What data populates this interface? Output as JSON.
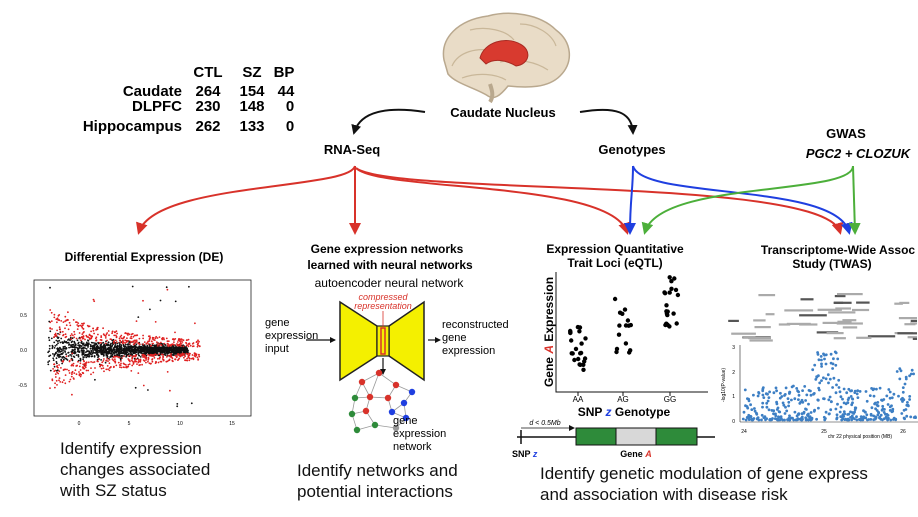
{
  "sample_table": {
    "headers": [
      "CTL",
      "SZ",
      "BP"
    ],
    "rows": [
      {
        "region": "Caudate",
        "values": [
          "264",
          "154",
          "44"
        ]
      },
      {
        "region": "DLPFC",
        "values": [
          "230",
          "148",
          "0"
        ]
      },
      {
        "region": "Hippocampus",
        "values": [
          "262",
          "133",
          "0"
        ]
      }
    ]
  },
  "top": {
    "source": "Caudate Nucleus",
    "rnaseq": "RNA-Seq",
    "genotypes": "Genotypes",
    "gwas_title": "GWAS",
    "gwas_sub": "PGC2 + CLOZUK"
  },
  "colors": {
    "rnaseq_arrows": "#d8322a",
    "genotype_arrows": "#1f3fe0",
    "gwas_arrows": "#4caf3a",
    "de_red_points": "#e02020",
    "twas_points": "#3d7fc4",
    "gene_green": "#2e8b3a",
    "autoencoder_yellow": "#f4f000"
  },
  "panels": {
    "de": {
      "title": "Differential Expression (DE)",
      "y_ticks": [
        "0.5",
        "0.0",
        "-0.5"
      ],
      "x_ticks": [
        "0",
        "5",
        "10",
        "15"
      ],
      "caption": [
        "Identify expression",
        "changes associated",
        "with SZ status"
      ]
    },
    "nn": {
      "title_lines": [
        "Gene expression networks",
        "learned with neural networks"
      ],
      "subtitle": "autoencoder neural network",
      "compressed": [
        "compressed",
        "representation"
      ],
      "input": [
        "gene",
        "expression",
        "input"
      ],
      "output": [
        "reconstructed",
        "gene",
        "expression"
      ],
      "network_label": [
        "gene",
        "expression",
        "network"
      ],
      "caption": [
        "Identify networks and",
        "potential interactions"
      ]
    },
    "eqtl": {
      "title_lines": [
        "Expression Quantitative",
        "Trait Loci (eQTL)"
      ],
      "ylabel_a": "Gene ",
      "ylabel_b": "A",
      "ylabel_c": " Expression",
      "genotypes": [
        "AA",
        "AG",
        "GG"
      ],
      "xlabel_a": "SNP ",
      "xlabel_b": "z",
      "xlabel_c": " Genotype",
      "distance": "d < 0.5Mb",
      "snp_a": "SNP ",
      "snp_b": "z",
      "gene_a": "Gene ",
      "gene_b": "A",
      "caption": [
        "Identify genetic modulation of gene express",
        "and association with disease risk"
      ]
    },
    "twas": {
      "title_lines": [
        "Transcriptome-Wide Assoc",
        "Study (TWAS)"
      ],
      "y_ticks": [
        "3",
        "2",
        "1",
        "0"
      ],
      "ylabel": "-log10(P-value)",
      "x_ticks": [
        "24",
        "25",
        "26"
      ],
      "xlabel": "chr 22 physical position (MB)"
    }
  }
}
